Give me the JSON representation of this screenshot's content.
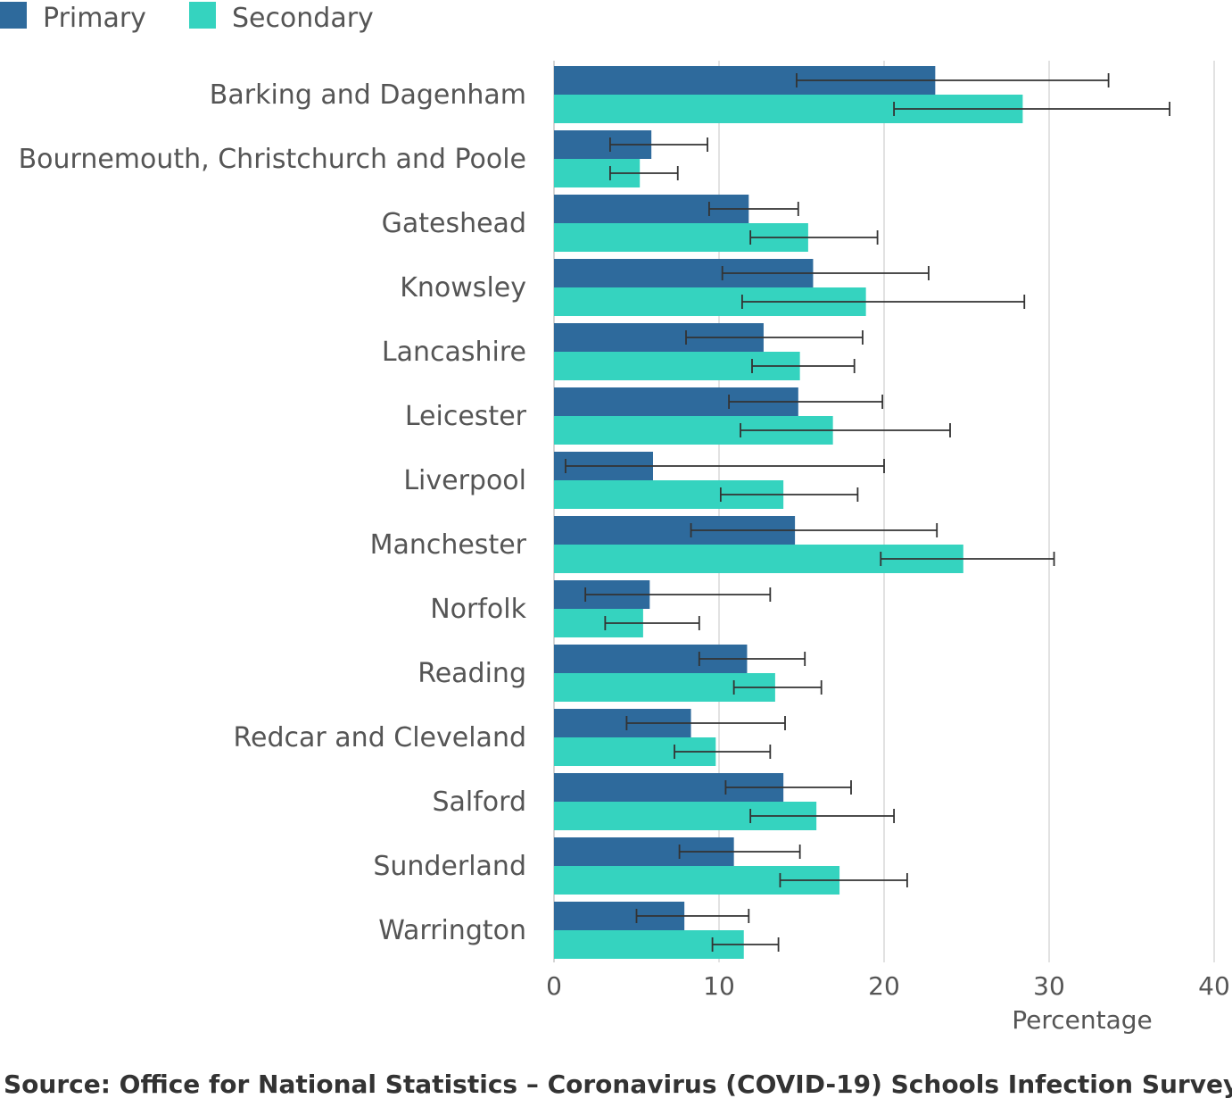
{
  "legend": {
    "primary_label": "Primary",
    "secondary_label": "Secondary"
  },
  "colors": {
    "primary": "#2e6a9c",
    "secondary": "#35d3bf",
    "grid": "#d9d9d9",
    "error_bar": "#333333"
  },
  "source": "Source: Office for National Statistics – Coronavirus (COVID-19) Schools Infection Survey",
  "chart_data": {
    "type": "bar",
    "orientation": "horizontal",
    "xlabel": "Percentage",
    "ylabel": "",
    "xlim": [
      0,
      40
    ],
    "xticks": [
      0,
      10,
      20,
      30,
      40
    ],
    "grid": "vertical",
    "legend_position": "top-left",
    "categories": [
      "Barking and Dagenham",
      "Bournemouth, Christchurch and Poole",
      "Gateshead",
      "Knowsley",
      "Lancashire",
      "Leicester",
      "Liverpool",
      "Manchester",
      "Norfolk",
      "Reading",
      "Redcar and Cleveland",
      "Salford",
      "Sunderland",
      "Warrington"
    ],
    "series": [
      {
        "name": "Primary",
        "values": [
          23.1,
          5.9,
          11.8,
          15.7,
          12.7,
          14.8,
          6.0,
          14.6,
          5.8,
          11.7,
          8.3,
          13.9,
          10.9,
          7.9
        ],
        "lower": [
          14.7,
          3.4,
          9.4,
          10.2,
          8.0,
          10.6,
          0.7,
          8.3,
          1.9,
          8.8,
          4.4,
          10.4,
          7.6,
          5.0
        ],
        "upper": [
          33.6,
          9.3,
          14.8,
          22.7,
          18.7,
          19.9,
          20.0,
          23.2,
          13.1,
          15.2,
          14.0,
          18.0,
          14.9,
          11.8
        ]
      },
      {
        "name": "Secondary",
        "values": [
          28.4,
          5.2,
          15.4,
          18.9,
          14.9,
          16.9,
          13.9,
          24.8,
          5.4,
          13.4,
          9.8,
          15.9,
          17.3,
          11.5
        ],
        "lower": [
          20.6,
          3.4,
          11.9,
          11.4,
          12.0,
          11.3,
          10.1,
          19.8,
          3.1,
          10.9,
          7.3,
          11.9,
          13.7,
          9.6
        ],
        "upper": [
          37.3,
          7.5,
          19.6,
          28.5,
          18.2,
          24.0,
          18.4,
          30.3,
          8.8,
          16.2,
          13.1,
          20.6,
          21.4,
          13.6
        ]
      }
    ]
  }
}
